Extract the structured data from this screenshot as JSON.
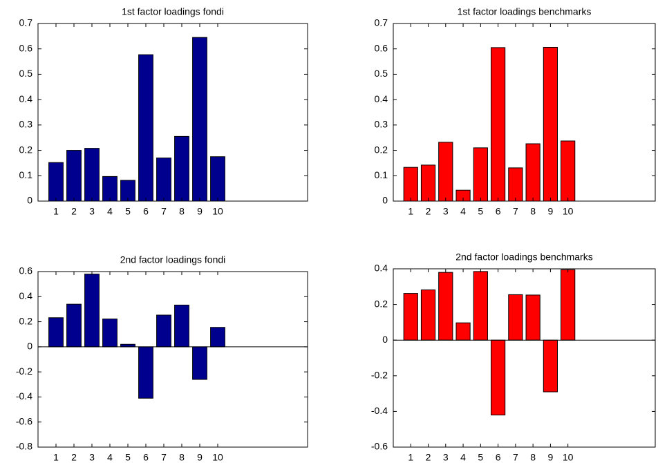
{
  "chart_data": [
    {
      "type": "bar",
      "title": "1st factor loadings fondi",
      "x": [
        1,
        2,
        3,
        4,
        5,
        6,
        7,
        8,
        9,
        10
      ],
      "values": [
        0.152,
        0.2,
        0.208,
        0.097,
        0.082,
        0.577,
        0.17,
        0.255,
        0.645,
        0.175
      ],
      "color": "#00008f",
      "xlim": [
        0,
        15
      ],
      "xticks": [
        1,
        2,
        3,
        4,
        5,
        6,
        7,
        8,
        9,
        10
      ],
      "ylim": [
        0,
        0.7
      ],
      "yticks": [
        0,
        0.1,
        0.2,
        0.3,
        0.4,
        0.5,
        0.6,
        0.7
      ]
    },
    {
      "type": "bar",
      "title": "1st factor loadings benchmarks",
      "x": [
        1,
        2,
        3,
        4,
        5,
        6,
        7,
        8,
        9,
        10
      ],
      "values": [
        0.133,
        0.142,
        0.232,
        0.043,
        0.21,
        0.605,
        0.131,
        0.226,
        0.606,
        0.237
      ],
      "color": "#ff0000",
      "xlim": [
        0,
        15
      ],
      "xticks": [
        1,
        2,
        3,
        4,
        5,
        6,
        7,
        8,
        9,
        10
      ],
      "ylim": [
        0,
        0.7
      ],
      "yticks": [
        0,
        0.1,
        0.2,
        0.3,
        0.4,
        0.5,
        0.6,
        0.7
      ]
    },
    {
      "type": "bar",
      "title": "2nd factor loadings fondi",
      "x": [
        1,
        2,
        3,
        4,
        5,
        6,
        7,
        8,
        9,
        10
      ],
      "values": [
        0.232,
        0.34,
        0.58,
        0.222,
        0.02,
        -0.41,
        0.253,
        0.333,
        -0.26,
        0.155
      ],
      "color": "#00008f",
      "xlim": [
        0,
        15
      ],
      "xticks": [
        1,
        2,
        3,
        4,
        5,
        6,
        7,
        8,
        9,
        10
      ],
      "ylim": [
        -0.8,
        0.6
      ],
      "yticks": [
        -0.8,
        -0.6,
        -0.4,
        -0.2,
        0,
        0.2,
        0.4,
        0.6
      ]
    },
    {
      "type": "bar",
      "title": "2nd factor loadings benchmarks",
      "x": [
        1,
        2,
        3,
        4,
        5,
        6,
        7,
        8,
        9,
        10
      ],
      "values": [
        0.262,
        0.282,
        0.38,
        0.097,
        0.385,
        -0.42,
        0.255,
        0.253,
        -0.29,
        0.395
      ],
      "color": "#ff0000",
      "xlim": [
        0,
        15
      ],
      "xticks": [
        1,
        2,
        3,
        4,
        5,
        6,
        7,
        8,
        9,
        10
      ],
      "ylim": [
        -0.6,
        0.4
      ],
      "yticks": [
        -0.6,
        -0.4,
        -0.2,
        0,
        0.2,
        0.4
      ]
    }
  ]
}
